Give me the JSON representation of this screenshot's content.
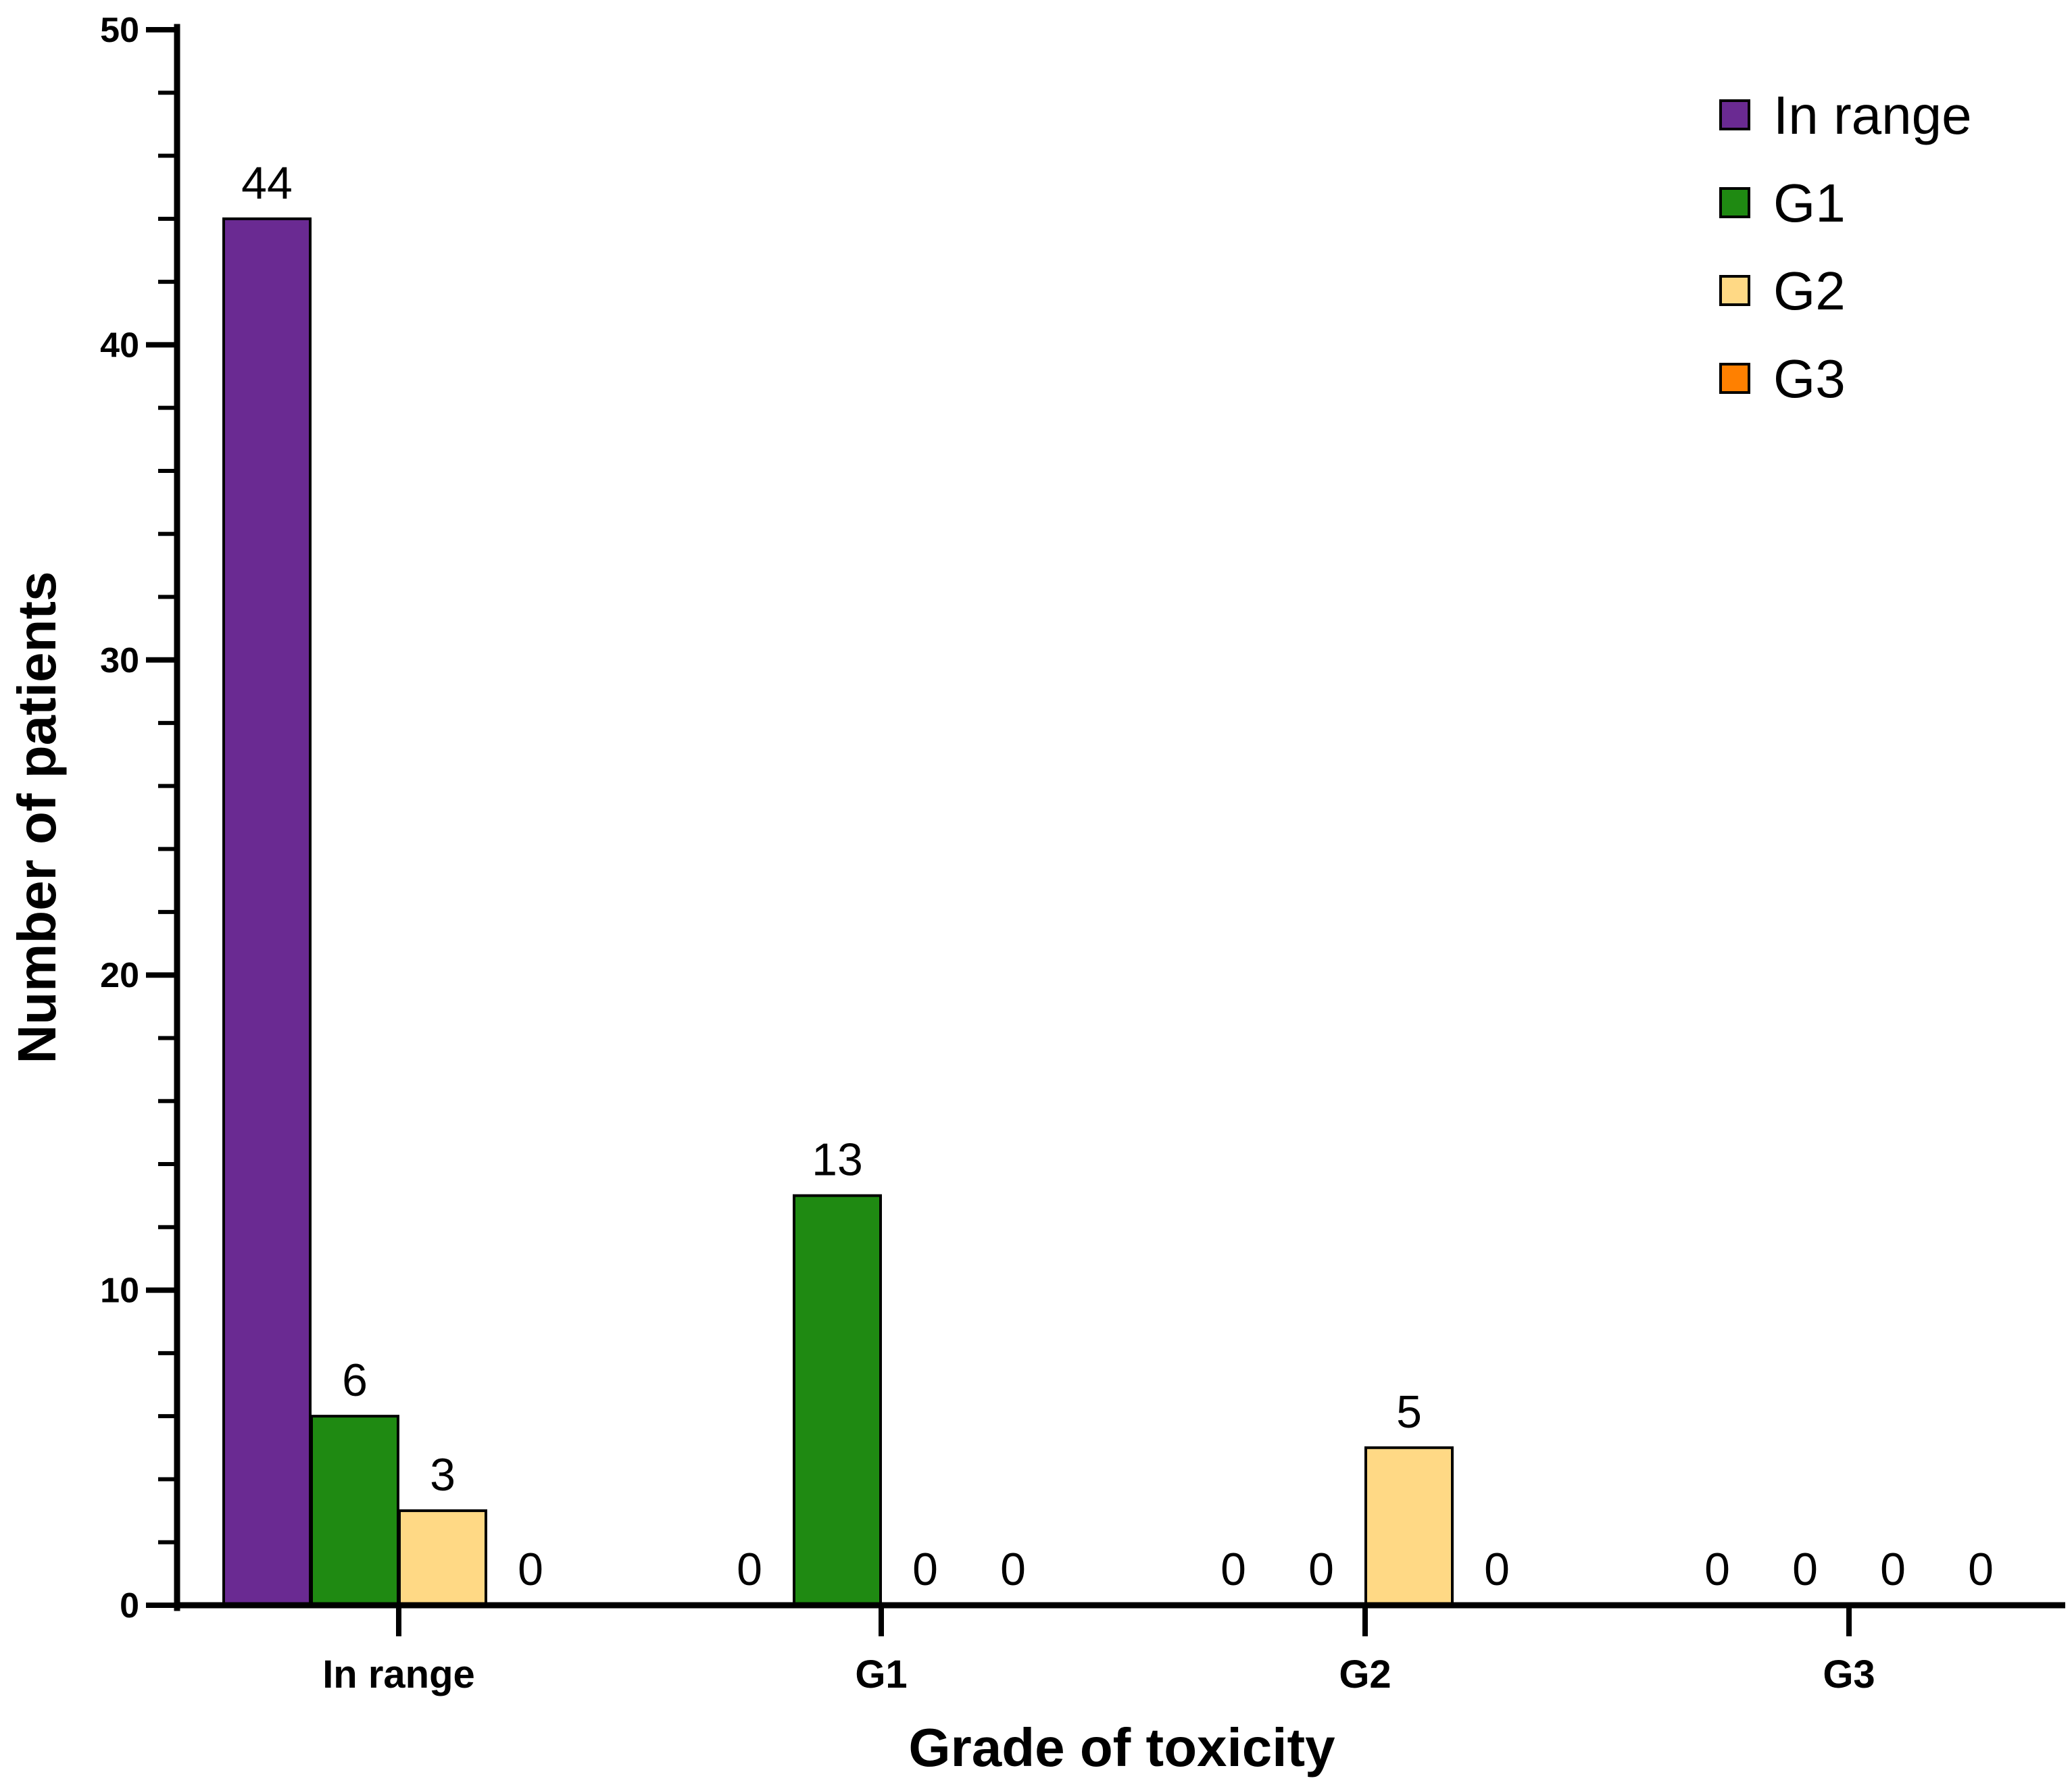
{
  "chart_data": {
    "type": "bar",
    "title": "",
    "xlabel": "Grade of toxicity",
    "ylabel": "Number of patients",
    "categories": [
      "In range",
      "G1",
      "G2",
      "G3"
    ],
    "series": [
      {
        "name": "In range",
        "color": "#6a2a92",
        "values": [
          44,
          0,
          0,
          0
        ]
      },
      {
        "name": "G1",
        "color": "#1f8a12",
        "values": [
          6,
          13,
          0,
          0
        ]
      },
      {
        "name": "G2",
        "color": "#ffd985",
        "values": [
          3,
          0,
          5,
          0
        ]
      },
      {
        "name": "G3",
        "color": "#ff8000",
        "values": [
          0,
          0,
          0,
          0
        ]
      }
    ],
    "ylim": [
      0,
      50
    ],
    "yticks": [
      0,
      10,
      20,
      30,
      40,
      50
    ],
    "yminor_step": 2,
    "grid": false,
    "legend_position": "top-right"
  }
}
